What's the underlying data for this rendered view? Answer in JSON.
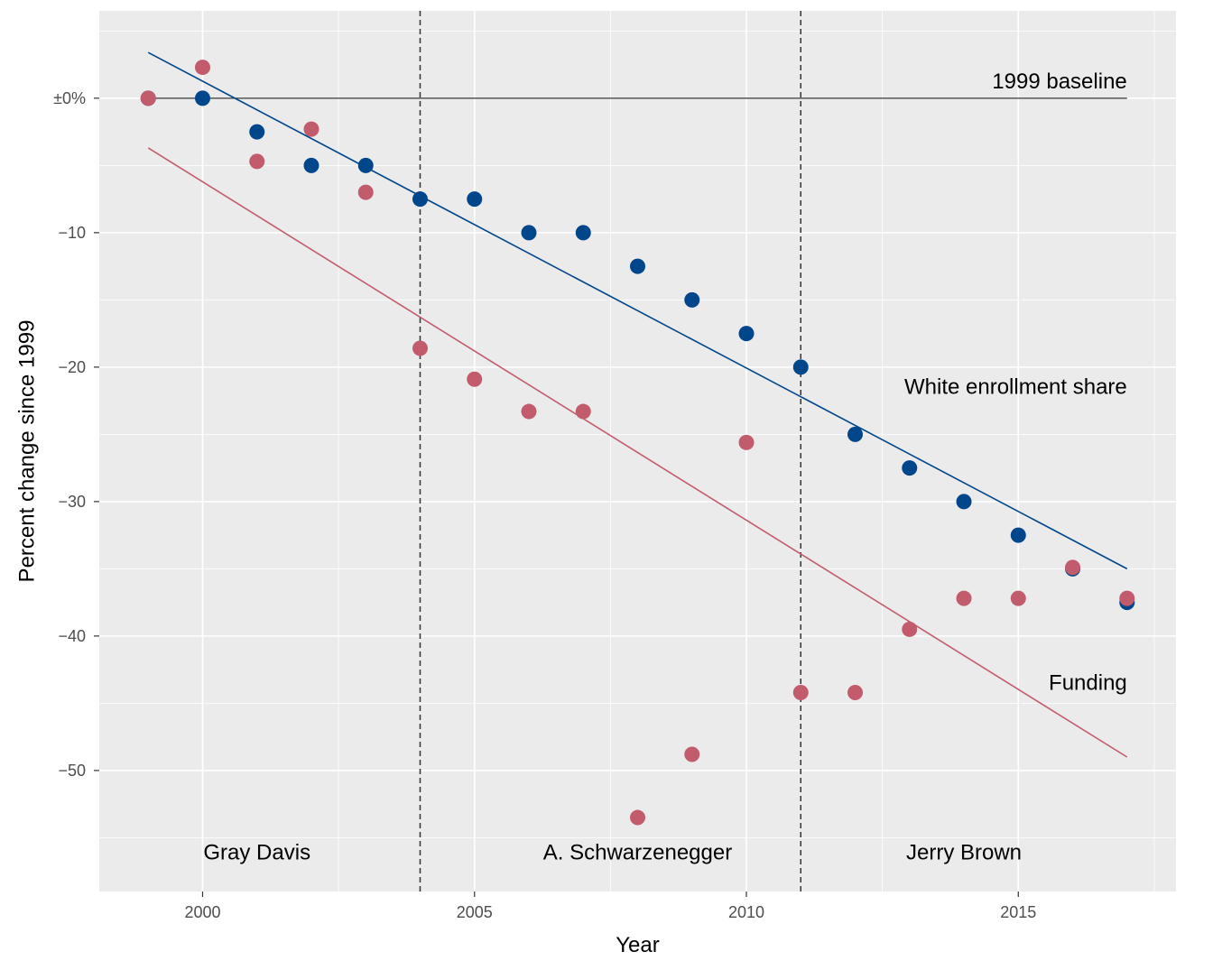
{
  "chart_data": {
    "type": "scatter",
    "title": "",
    "xlabel": "Year",
    "ylabel": "Percent change since 1999",
    "xlim": [
      1998.1,
      2017.9
    ],
    "ylim": [
      -59.0,
      6.5
    ],
    "x_ticks": [
      2000,
      2005,
      2010,
      2015
    ],
    "x_tick_labels": [
      "2000",
      "2005",
      "2010",
      "2015"
    ],
    "y_ticks": [
      0,
      -10,
      -20,
      -30,
      -40,
      -50
    ],
    "y_tick_labels": [
      "±0%",
      "−10",
      "−20",
      "−30",
      "−40",
      "−50"
    ],
    "grid": true,
    "legend": "none",
    "series": [
      {
        "color": "#00468b",
        "x": [
          1999,
          2000,
          2001,
          2002,
          2003,
          2004,
          2005,
          2006,
          2007,
          2008,
          2009,
          2010,
          2011,
          2012,
          2013,
          2014,
          2015,
          2016,
          2017
        ],
        "values": [
          0,
          0,
          -2.5,
          -5,
          -5,
          -7.5,
          -7.5,
          -10,
          -10,
          -12.5,
          -15,
          -17.5,
          -20,
          -25,
          -27.5,
          -30,
          -32.5,
          -35,
          -37.5
        ],
        "trend": [
          [
            1999,
            3.4
          ],
          [
            2017,
            -35.0
          ]
        ]
      },
      {
        "color": "#c25b6c",
        "x": [
          1999,
          2000,
          2001,
          2002,
          2003,
          2004,
          2005,
          2006,
          2007,
          2008,
          2009,
          2010,
          2011,
          2012,
          2013,
          2014,
          2015,
          2016,
          2017
        ],
        "values": [
          0,
          2.3,
          -4.7,
          -2.3,
          -7.0,
          -18.6,
          -20.9,
          -23.3,
          -23.3,
          -53.5,
          -48.8,
          -25.6,
          -44.2,
          -44.2,
          -39.5,
          -37.2,
          -37.2,
          -34.9,
          -37.2
        ],
        "trend": [
          [
            1999,
            -3.7
          ],
          [
            2017,
            -49.0
          ]
        ]
      }
    ],
    "baseline": {
      "y": 0,
      "x_range": [
        1999,
        2017
      ],
      "label": "1999 baseline"
    },
    "series_labels": [
      {
        "text": "White enrollment share",
        "x": 2017,
        "y": -21.5
      },
      {
        "text": "Funding",
        "x": 2017,
        "y": -43.5
      }
    ],
    "vlines": [
      2004,
      2011
    ],
    "eras": [
      {
        "text": "Gray Davis",
        "x": 2001,
        "y": -56.1
      },
      {
        "text": "A. Schwarzenegger",
        "x": 2008,
        "y": -56.1
      },
      {
        "text": "Jerry Brown",
        "x": 2014,
        "y": -56.1
      }
    ],
    "colors": {
      "panel": "#ebebeb",
      "grid": "#ffffff",
      "baseline": "#333333",
      "vline": "#333333"
    }
  }
}
